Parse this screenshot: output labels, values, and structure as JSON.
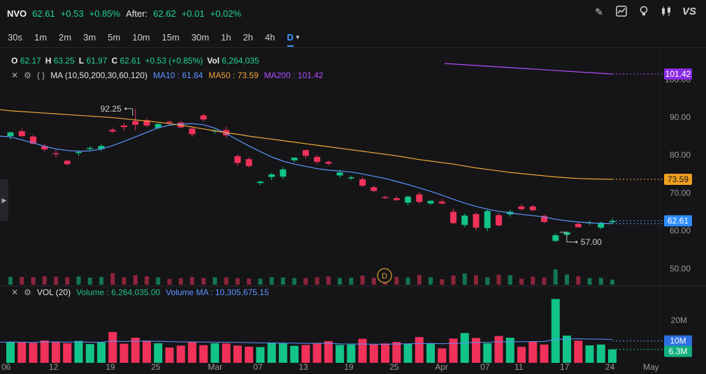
{
  "header": {
    "symbol": "NVO",
    "price": "62.61",
    "change": "+0.53",
    "change_pct": "+0.85%",
    "after_label": "After:",
    "after_price": "62.62",
    "after_change": "+0.01",
    "after_pct": "+0.02%"
  },
  "toolbar": {
    "icons": [
      "pencil-icon",
      "chart-line-icon",
      "lightbulb-icon",
      "candlestick-icon"
    ],
    "vs_label": "VS"
  },
  "intervals": [
    "30s",
    "1m",
    "2m",
    "3m",
    "5m",
    "10m",
    "15m",
    "30m",
    "1h",
    "2h",
    "4h",
    "D"
  ],
  "active_interval": "D",
  "ohlc": {
    "o_label": "O",
    "o": "62.17",
    "h_label": "H",
    "h": "63.25",
    "l_label": "L",
    "l": "61.97",
    "c_label": "C",
    "c": "62.61",
    "chg": "+0.53 (+0.85%)",
    "vol_label": "Vol",
    "vol": "6,264,035"
  },
  "ma_legend": {
    "title": "MA (10,50,200,30,60,120)",
    "ma10": "MA10 : 61.84",
    "ma50": "MA50 : 73.59",
    "ma200": "MA200 : 101.42"
  },
  "vol_legend": {
    "title": "VOL (20)",
    "volume": "Volume : 6,264,035.00",
    "volume_ma": "Volume MA : 10,305,675.15"
  },
  "colors": {
    "up": "#12c38a",
    "down": "#f0315a",
    "ma10": "#5e94ff",
    "ma50": "#f0a63a",
    "ma200": "#b04dff"
  },
  "chart_data": {
    "type": "candlestick",
    "price_ticks": [
      90,
      80,
      70,
      60,
      50
    ],
    "price_tick_labels": [
      "90.00",
      "80.00",
      "70.00",
      "60.00",
      "50.00"
    ],
    "partial_top_label": "100.00",
    "volume_ticks": [
      "20M",
      "10M"
    ],
    "x_labels": [
      "06",
      "12",
      "19",
      "25",
      "Mar",
      "07",
      "13",
      "19",
      "25",
      "Apr",
      "07",
      "11",
      "17",
      "24",
      "May"
    ],
    "annotations": {
      "high": "92.25",
      "low": "57.00",
      "event_marker": "D"
    },
    "price_badges": {
      "ma200": "101.42",
      "ma50": "73.59",
      "last": "62.61"
    },
    "volume_badges": {
      "ma": "10M",
      "last": "6.3M"
    },
    "candles": [
      {
        "o": 85.0,
        "h": 86.2,
        "l": 84.0,
        "c": 86.0
      },
      {
        "o": 86.3,
        "h": 87.0,
        "l": 84.8,
        "c": 85.0
      },
      {
        "o": 84.9,
        "h": 85.3,
        "l": 82.8,
        "c": 83.0
      },
      {
        "o": 82.4,
        "h": 83.0,
        "l": 81.0,
        "c": 81.5
      },
      {
        "o": 80.5,
        "h": 81.3,
        "l": 79.3,
        "c": 80.4
      },
      {
        "o": 78.5,
        "h": 78.8,
        "l": 77.2,
        "c": 77.6
      },
      {
        "o": 80.6,
        "h": 81.3,
        "l": 79.8,
        "c": 80.8
      },
      {
        "o": 81.8,
        "h": 82.3,
        "l": 81.2,
        "c": 81.9
      },
      {
        "o": 81.6,
        "h": 82.8,
        "l": 81.0,
        "c": 82.4
      },
      {
        "o": 86.7,
        "h": 87.3,
        "l": 85.8,
        "c": 86.2
      },
      {
        "o": 87.8,
        "h": 88.5,
        "l": 86.4,
        "c": 87.4
      },
      {
        "o": 89.0,
        "h": 92.2,
        "l": 86.5,
        "c": 88.0
      },
      {
        "o": 89.2,
        "h": 89.6,
        "l": 87.4,
        "c": 87.8
      },
      {
        "o": 87.2,
        "h": 88.5,
        "l": 86.8,
        "c": 88.2
      },
      {
        "o": 88.8,
        "h": 89.2,
        "l": 87.9,
        "c": 88.6
      },
      {
        "o": 88.6,
        "h": 89.0,
        "l": 87.0,
        "c": 87.3
      },
      {
        "o": 87.0,
        "h": 87.6,
        "l": 84.8,
        "c": 85.5
      },
      {
        "o": 90.5,
        "h": 91.0,
        "l": 88.9,
        "c": 89.4
      },
      {
        "o": 86.4,
        "h": 86.8,
        "l": 85.7,
        "c": 86.5
      },
      {
        "o": 86.6,
        "h": 87.5,
        "l": 84.5,
        "c": 85.2
      },
      {
        "o": 79.7,
        "h": 80.2,
        "l": 77.2,
        "c": 77.9
      },
      {
        "o": 78.9,
        "h": 79.4,
        "l": 76.7,
        "c": 77.1
      },
      {
        "o": 72.6,
        "h": 73.2,
        "l": 72.0,
        "c": 73.0
      },
      {
        "o": 74.2,
        "h": 75.3,
        "l": 73.4,
        "c": 74.9
      },
      {
        "o": 74.3,
        "h": 76.8,
        "l": 73.7,
        "c": 76.2
      },
      {
        "o": 78.6,
        "h": 79.5,
        "l": 78.0,
        "c": 79.3
      },
      {
        "o": 81.3,
        "h": 81.5,
        "l": 79.1,
        "c": 79.8
      },
      {
        "o": 79.5,
        "h": 80.1,
        "l": 77.6,
        "c": 78.2
      },
      {
        "o": 78.2,
        "h": 78.6,
        "l": 77.2,
        "c": 77.7
      },
      {
        "o": 74.6,
        "h": 76.1,
        "l": 74.0,
        "c": 75.4
      },
      {
        "o": 73.9,
        "h": 74.5,
        "l": 73.4,
        "c": 74.1
      },
      {
        "o": 73.6,
        "h": 74.2,
        "l": 71.6,
        "c": 71.9
      },
      {
        "o": 71.5,
        "h": 71.8,
        "l": 70.2,
        "c": 70.5
      },
      {
        "o": 68.9,
        "h": 69.3,
        "l": 68.4,
        "c": 68.8
      },
      {
        "o": 68.6,
        "h": 69.2,
        "l": 67.9,
        "c": 68.1
      },
      {
        "o": 67.4,
        "h": 69.3,
        "l": 66.6,
        "c": 69.0
      },
      {
        "o": 69.6,
        "h": 70.2,
        "l": 67.2,
        "c": 67.6
      },
      {
        "o": 67.2,
        "h": 68.0,
        "l": 66.8,
        "c": 67.9
      },
      {
        "o": 67.7,
        "h": 68.4,
        "l": 67.0,
        "c": 67.2
      },
      {
        "o": 65.0,
        "h": 65.8,
        "l": 61.7,
        "c": 62.0
      },
      {
        "o": 61.5,
        "h": 64.5,
        "l": 60.9,
        "c": 64.0
      },
      {
        "o": 64.4,
        "h": 64.9,
        "l": 60.1,
        "c": 60.8
      },
      {
        "o": 60.7,
        "h": 65.6,
        "l": 59.9,
        "c": 65.2
      },
      {
        "o": 64.1,
        "h": 64.6,
        "l": 61.1,
        "c": 61.4
      },
      {
        "o": 64.3,
        "h": 65.5,
        "l": 63.7,
        "c": 65.0
      },
      {
        "o": 66.4,
        "h": 67.0,
        "l": 65.4,
        "c": 65.7
      },
      {
        "o": 66.4,
        "h": 66.8,
        "l": 65.1,
        "c": 65.4
      },
      {
        "o": 63.9,
        "h": 64.3,
        "l": 62.0,
        "c": 62.3
      },
      {
        "o": 57.3,
        "h": 59.3,
        "l": 57.0,
        "c": 58.8
      },
      {
        "o": 58.9,
        "h": 59.9,
        "l": 58.4,
        "c": 59.6
      },
      {
        "o": 61.8,
        "h": 62.2,
        "l": 60.8,
        "c": 60.9
      },
      {
        "o": 62.0,
        "h": 62.7,
        "l": 61.5,
        "c": 62.2
      },
      {
        "o": 60.8,
        "h": 62.4,
        "l": 60.4,
        "c": 62.1
      },
      {
        "o": 62.2,
        "h": 63.3,
        "l": 62.0,
        "c": 62.6
      }
    ],
    "volume_millions": [
      9.8,
      9.6,
      9.4,
      10.5,
      9.9,
      9.2,
      10.3,
      8.8,
      9.6,
      14.5,
      9.0,
      11.8,
      10.4,
      9.2,
      7.2,
      8.1,
      9.7,
      8.3,
      9.2,
      9.1,
      8.1,
      7.6,
      7.4,
      9.5,
      9.1,
      8.0,
      8.4,
      9.1,
      10.2,
      8.4,
      8.6,
      11.3,
      8.6,
      9.1,
      9.8,
      8.9,
      12.1,
      9.2,
      6.8,
      11.4,
      14.0,
      11.7,
      9.2,
      12.6,
      11.8,
      7.5,
      10.1,
      8.6,
      30.0,
      12.8,
      10.4,
      8.2,
      8.6,
      6.3
    ],
    "ma10": [
      84.8,
      84.0,
      83.2,
      82.3,
      81.6,
      81.2,
      81.0,
      81.1,
      81.6,
      82.5,
      83.6,
      84.8,
      86.0,
      87.2,
      87.9,
      88.2,
      88.3,
      88.0,
      87.1,
      85.7,
      84.0,
      82.4,
      80.9,
      79.5,
      78.4,
      77.6,
      77.0,
      76.4,
      76.0,
      75.8,
      75.5,
      75.0,
      74.4,
      73.8,
      73.0,
      72.2,
      71.3,
      70.4,
      69.4,
      68.3,
      67.3,
      66.4,
      65.7,
      65.1,
      64.7,
      64.3,
      64.0,
      63.6,
      63.0,
      62.6,
      62.3,
      62.1,
      61.9,
      61.84
    ],
    "ma50": [
      91.7,
      91.5,
      91.3,
      91.1,
      90.9,
      90.7,
      90.5,
      90.3,
      90.1,
      89.9,
      89.6,
      89.3,
      89.0,
      88.7,
      88.3,
      87.9,
      87.4,
      86.9,
      86.4,
      85.9,
      85.5,
      85.0,
      84.6,
      84.2,
      83.8,
      83.4,
      83.0,
      82.6,
      82.2,
      81.8,
      81.4,
      81.0,
      80.6,
      80.2,
      79.8,
      79.3,
      78.8,
      78.4,
      78.0,
      77.6,
      77.1,
      76.6,
      76.2,
      75.8,
      75.4,
      75.1,
      74.8,
      74.5,
      74.2,
      74.0,
      73.8,
      73.7,
      73.65,
      73.59
    ],
    "ma200_segment": {
      "start_index": 37,
      "values_start": 104.2,
      "values_end": 101.42
    }
  }
}
